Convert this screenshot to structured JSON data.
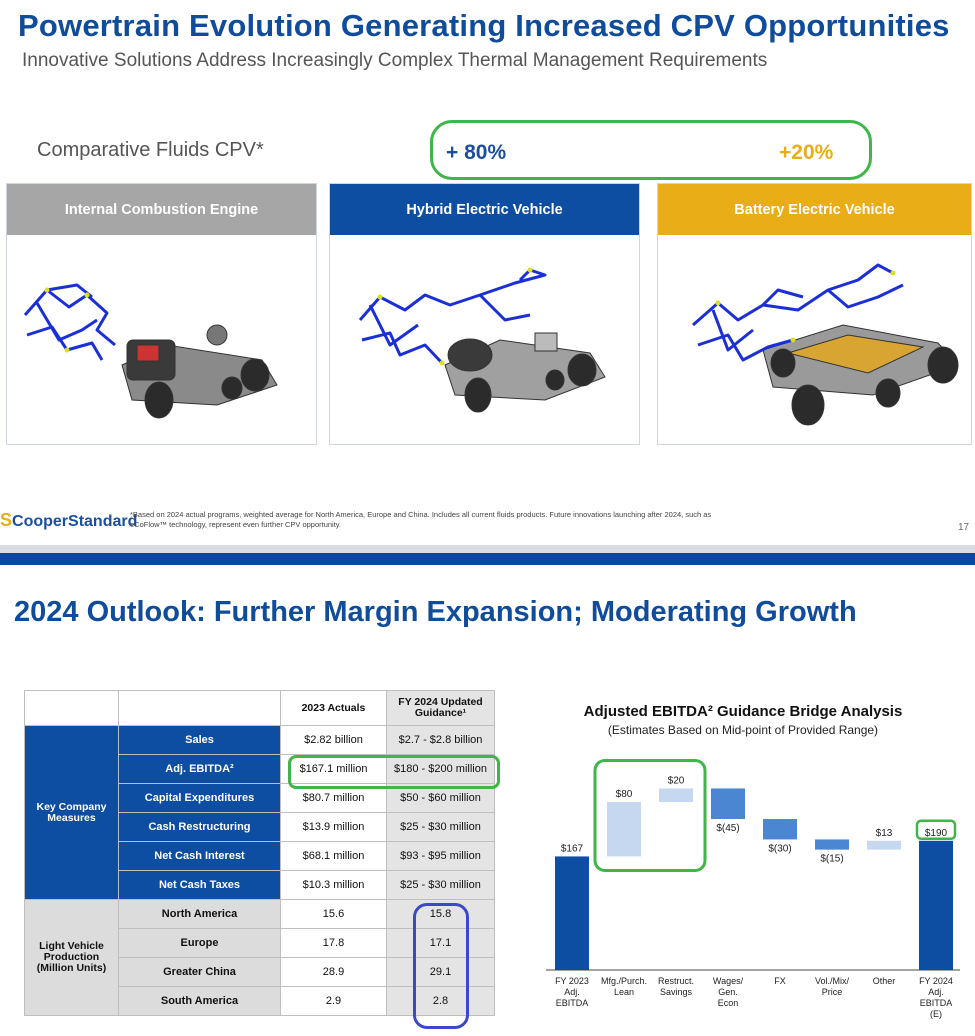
{
  "slide1": {
    "title": "Powertrain Evolution Generating Increased CPV Opportunities",
    "subtitle": "Innovative Solutions Address Increasingly Complex Thermal Management Requirements",
    "cpv_label": "Comparative Fluids CPV*",
    "hev_increase": "+ 80%",
    "bev_increase": "+20%",
    "panels": [
      {
        "label": "Internal Combustion Engine",
        "color": "#a6a6a6"
      },
      {
        "label": "Hybrid Electric Vehicle",
        "color": "#0d4ea3"
      },
      {
        "label": "Battery Electric Vehicle",
        "color": "#e9ad18"
      }
    ],
    "logo": "CooperStandard",
    "footnote": "*Based on 2024 actual programs, weighted average for North America, Europe and China. Includes all current fluids products.  Future innovations launching after 2024, such as eCoFlow™ technology, represent even further CPV opportunity.",
    "page_number": "17"
  },
  "slide2": {
    "title": "2024 Outlook: Further Margin Expansion; Moderating Growth",
    "table": {
      "col_headers": [
        "2023 Actuals",
        "FY 2024 Updated Guidance¹"
      ],
      "group1": "Key Company Measures",
      "group1_rows": [
        {
          "label": "Sales",
          "actual": "$2.82 billion",
          "guidance": "$2.7 - $2.8 billion"
        },
        {
          "label": "Adj. EBITDA²",
          "actual": "$167.1 million",
          "guidance": "$180 - $200 million"
        },
        {
          "label": "Capital Expenditures",
          "actual": "$80.7 million",
          "guidance": "$50 - $60 million"
        },
        {
          "label": "Cash Restructuring",
          "actual": "$13.9 million",
          "guidance": "$25 - $30 million"
        },
        {
          "label": "Net Cash Interest",
          "actual": "$68.1 million",
          "guidance": "$93 - $95 million"
        },
        {
          "label": "Net Cash Taxes",
          "actual": "$10.3 million",
          "guidance": "$25 - $30 million"
        }
      ],
      "group2": "Light Vehicle Production (Million Units)",
      "group2_rows": [
        {
          "label": "North America",
          "actual": "15.6",
          "guidance": "15.8"
        },
        {
          "label": "Europe",
          "actual": "17.8",
          "guidance": "17.1"
        },
        {
          "label": "Greater China",
          "actual": "28.9",
          "guidance": "29.1"
        },
        {
          "label": "South America",
          "actual": "2.9",
          "guidance": "2.8"
        }
      ]
    },
    "chart_title": "Adjusted EBITDA² Guidance Bridge Analysis",
    "chart_subtitle": "(Estimates Based on Mid-point of Provided Range)"
  },
  "chart_data": {
    "type": "bar",
    "title": "Adjusted EBITDA² Guidance Bridge Analysis",
    "subtitle": "(Estimates Based on Mid-point of Provided Range)",
    "categories": [
      "FY 2023 Adj. EBITDA",
      "Mfg./Purch. Lean",
      "Restruct. Savings",
      "Wages/ Gen. Econ",
      "FX",
      "Vol./Mix/ Price",
      "Other",
      "FY 2024 Adj. EBITDA (E)"
    ],
    "values": [
      167,
      80,
      20,
      -45,
      -30,
      -15,
      13,
      190
    ],
    "labels": [
      "$167",
      "$80",
      "$20",
      "$(45)",
      "$(30)",
      "$(15)",
      "$13",
      "$190"
    ],
    "kinds": [
      "total",
      "increase",
      "increase",
      "decrease",
      "decrease",
      "decrease",
      "increase",
      "total"
    ],
    "colors": {
      "total": "#0d4ea3",
      "increase": "#c5d8f0",
      "decrease": "#4a86d1"
    }
  }
}
